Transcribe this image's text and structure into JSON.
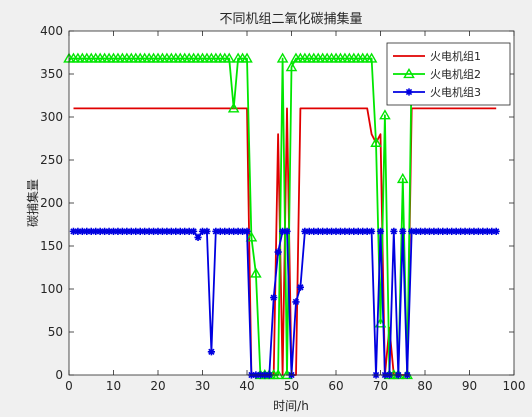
{
  "chart_data": {
    "type": "line",
    "title": "不同机组二氧化碳捕集量",
    "xlabel": "时间/h",
    "ylabel": "碳捕集量",
    "xlim": [
      0,
      100
    ],
    "ylim": [
      0,
      400
    ],
    "xticks": [
      0,
      10,
      20,
      30,
      40,
      50,
      60,
      70,
      80,
      90,
      100
    ],
    "yticks": [
      0,
      50,
      100,
      150,
      200,
      250,
      300,
      350,
      400
    ],
    "grid": false,
    "legend_position": "top-right",
    "series": [
      {
        "name": "火电机组1",
        "color": "#e00000",
        "marker": "none",
        "points": [
          [
            1,
            310
          ],
          [
            2,
            310
          ],
          [
            3,
            310
          ],
          [
            4,
            310
          ],
          [
            5,
            310
          ],
          [
            6,
            310
          ],
          [
            7,
            310
          ],
          [
            8,
            310
          ],
          [
            9,
            310
          ],
          [
            10,
            310
          ],
          [
            11,
            310
          ],
          [
            12,
            310
          ],
          [
            13,
            310
          ],
          [
            14,
            310
          ],
          [
            15,
            310
          ],
          [
            16,
            310
          ],
          [
            17,
            310
          ],
          [
            18,
            310
          ],
          [
            19,
            310
          ],
          [
            20,
            310
          ],
          [
            21,
            310
          ],
          [
            22,
            310
          ],
          [
            23,
            310
          ],
          [
            24,
            310
          ],
          [
            25,
            310
          ],
          [
            26,
            310
          ],
          [
            27,
            310
          ],
          [
            28,
            310
          ],
          [
            29,
            310
          ],
          [
            30,
            310
          ],
          [
            31,
            310
          ],
          [
            32,
            310
          ],
          [
            33,
            310
          ],
          [
            34,
            310
          ],
          [
            35,
            310
          ],
          [
            36,
            310
          ],
          [
            37,
            310
          ],
          [
            38,
            310
          ],
          [
            39,
            310
          ],
          [
            40,
            310
          ],
          [
            41,
            0
          ],
          [
            42,
            0
          ],
          [
            43,
            0
          ],
          [
            44,
            0
          ],
          [
            45,
            0
          ],
          [
            46,
            0
          ],
          [
            47,
            280
          ],
          [
            48,
            0
          ],
          [
            49,
            310
          ],
          [
            50,
            0
          ],
          [
            51,
            0
          ],
          [
            52,
            310
          ],
          [
            53,
            310
          ],
          [
            54,
            310
          ],
          [
            55,
            310
          ],
          [
            56,
            310
          ],
          [
            57,
            310
          ],
          [
            58,
            310
          ],
          [
            59,
            310
          ],
          [
            60,
            310
          ],
          [
            61,
            310
          ],
          [
            62,
            310
          ],
          [
            63,
            310
          ],
          [
            64,
            310
          ],
          [
            65,
            310
          ],
          [
            66,
            310
          ],
          [
            67,
            310
          ],
          [
            68,
            280
          ],
          [
            69,
            270
          ],
          [
            70,
            280
          ],
          [
            71,
            0
          ],
          [
            72,
            55
          ],
          [
            73,
            0
          ],
          [
            74,
            0
          ],
          [
            75,
            0
          ],
          [
            76,
            0
          ],
          [
            77,
            310
          ],
          [
            78,
            310
          ],
          [
            79,
            310
          ],
          [
            80,
            310
          ],
          [
            81,
            310
          ],
          [
            82,
            310
          ],
          [
            83,
            310
          ],
          [
            84,
            310
          ],
          [
            85,
            310
          ],
          [
            86,
            310
          ],
          [
            87,
            310
          ],
          [
            88,
            310
          ],
          [
            89,
            310
          ],
          [
            90,
            310
          ],
          [
            91,
            310
          ],
          [
            92,
            310
          ],
          [
            93,
            310
          ],
          [
            94,
            310
          ],
          [
            95,
            310
          ],
          [
            96,
            310
          ]
        ]
      },
      {
        "name": "火电机组2",
        "color": "#00e600",
        "marker": "triangle",
        "points": [
          [
            0,
            368
          ],
          [
            1,
            368
          ],
          [
            2,
            368
          ],
          [
            3,
            368
          ],
          [
            4,
            368
          ],
          [
            5,
            368
          ],
          [
            6,
            368
          ],
          [
            7,
            368
          ],
          [
            8,
            368
          ],
          [
            9,
            368
          ],
          [
            10,
            368
          ],
          [
            11,
            368
          ],
          [
            12,
            368
          ],
          [
            13,
            368
          ],
          [
            14,
            368
          ],
          [
            15,
            368
          ],
          [
            16,
            368
          ],
          [
            17,
            368
          ],
          [
            18,
            368
          ],
          [
            19,
            368
          ],
          [
            20,
            368
          ],
          [
            21,
            368
          ],
          [
            22,
            368
          ],
          [
            23,
            368
          ],
          [
            24,
            368
          ],
          [
            25,
            368
          ],
          [
            26,
            368
          ],
          [
            27,
            368
          ],
          [
            28,
            368
          ],
          [
            29,
            368
          ],
          [
            30,
            368
          ],
          [
            31,
            368
          ],
          [
            32,
            368
          ],
          [
            33,
            368
          ],
          [
            34,
            368
          ],
          [
            35,
            368
          ],
          [
            36,
            368
          ],
          [
            37,
            310
          ],
          [
            38,
            368
          ],
          [
            39,
            368
          ],
          [
            40,
            368
          ],
          [
            41,
            160
          ],
          [
            42,
            118
          ],
          [
            43,
            0
          ],
          [
            44,
            0
          ],
          [
            45,
            0
          ],
          [
            46,
            0
          ],
          [
            47,
            0
          ],
          [
            48,
            368
          ],
          [
            49,
            0
          ],
          [
            50,
            358
          ],
          [
            51,
            368
          ],
          [
            52,
            368
          ],
          [
            53,
            368
          ],
          [
            54,
            368
          ],
          [
            55,
            368
          ],
          [
            56,
            368
          ],
          [
            57,
            368
          ],
          [
            58,
            368
          ],
          [
            59,
            368
          ],
          [
            60,
            368
          ],
          [
            61,
            368
          ],
          [
            62,
            368
          ],
          [
            63,
            368
          ],
          [
            64,
            368
          ],
          [
            65,
            368
          ],
          [
            66,
            368
          ],
          [
            67,
            368
          ],
          [
            68,
            368
          ],
          [
            69,
            270
          ],
          [
            70,
            60
          ],
          [
            71,
            302
          ],
          [
            72,
            0
          ],
          [
            73,
            0
          ],
          [
            74,
            0
          ],
          [
            75,
            228
          ],
          [
            76,
            0
          ],
          [
            77,
            365
          ]
        ]
      },
      {
        "name": "火电机组3",
        "color": "#0000e0",
        "marker": "asterisk",
        "points": [
          [
            1,
            167
          ],
          [
            2,
            167
          ],
          [
            3,
            167
          ],
          [
            4,
            167
          ],
          [
            5,
            167
          ],
          [
            6,
            167
          ],
          [
            7,
            167
          ],
          [
            8,
            167
          ],
          [
            9,
            167
          ],
          [
            10,
            167
          ],
          [
            11,
            167
          ],
          [
            12,
            167
          ],
          [
            13,
            167
          ],
          [
            14,
            167
          ],
          [
            15,
            167
          ],
          [
            16,
            167
          ],
          [
            17,
            167
          ],
          [
            18,
            167
          ],
          [
            19,
            167
          ],
          [
            20,
            167
          ],
          [
            21,
            167
          ],
          [
            22,
            167
          ],
          [
            23,
            167
          ],
          [
            24,
            167
          ],
          [
            25,
            167
          ],
          [
            26,
            167
          ],
          [
            27,
            167
          ],
          [
            28,
            167
          ],
          [
            29,
            160
          ],
          [
            30,
            167
          ],
          [
            31,
            167
          ],
          [
            32,
            27
          ],
          [
            33,
            167
          ],
          [
            34,
            167
          ],
          [
            35,
            167
          ],
          [
            36,
            167
          ],
          [
            37,
            167
          ],
          [
            38,
            167
          ],
          [
            39,
            167
          ],
          [
            40,
            167
          ],
          [
            41,
            0
          ],
          [
            42,
            0
          ],
          [
            43,
            0
          ],
          [
            44,
            0
          ],
          [
            45,
            0
          ],
          [
            46,
            90
          ],
          [
            47,
            143
          ],
          [
            48,
            167
          ],
          [
            49,
            167
          ],
          [
            50,
            0
          ],
          [
            51,
            85
          ],
          [
            52,
            102
          ],
          [
            53,
            167
          ],
          [
            54,
            167
          ],
          [
            55,
            167
          ],
          [
            56,
            167
          ],
          [
            57,
            167
          ],
          [
            58,
            167
          ],
          [
            59,
            167
          ],
          [
            60,
            167
          ],
          [
            61,
            167
          ],
          [
            62,
            167
          ],
          [
            63,
            167
          ],
          [
            64,
            167
          ],
          [
            65,
            167
          ],
          [
            66,
            167
          ],
          [
            67,
            167
          ],
          [
            68,
            167
          ],
          [
            69,
            0
          ],
          [
            70,
            167
          ],
          [
            71,
            0
          ],
          [
            72,
            0
          ],
          [
            73,
            167
          ],
          [
            74,
            0
          ],
          [
            75,
            167
          ],
          [
            76,
            0
          ],
          [
            77,
            167
          ],
          [
            78,
            167
          ],
          [
            79,
            167
          ],
          [
            80,
            167
          ],
          [
            81,
            167
          ],
          [
            82,
            167
          ],
          [
            83,
            167
          ],
          [
            84,
            167
          ],
          [
            85,
            167
          ],
          [
            86,
            167
          ],
          [
            87,
            167
          ],
          [
            88,
            167
          ],
          [
            89,
            167
          ],
          [
            90,
            167
          ],
          [
            91,
            167
          ],
          [
            92,
            167
          ],
          [
            93,
            167
          ],
          [
            94,
            167
          ],
          [
            95,
            167
          ],
          [
            96,
            167
          ]
        ]
      }
    ]
  }
}
